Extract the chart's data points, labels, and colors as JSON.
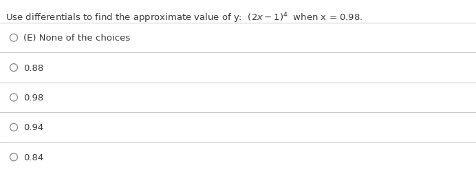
{
  "title_text": "Use differentials to find the approximate value of y:  $(2x - 1)^4$  when x = 0.98.",
  "choices": [
    "(E) None of the choices",
    "0.88",
    "0.98",
    "0.94",
    "0.84"
  ],
  "bg_color": "#ffffff",
  "text_color": "#3a3a3a",
  "line_color": "#c8c8c8",
  "circle_edge_color": "#888888",
  "title_fontsize": 9.5,
  "choice_fontsize": 9.5,
  "fig_width": 6.92,
  "fig_height": 2.51,
  "dpi": 100
}
